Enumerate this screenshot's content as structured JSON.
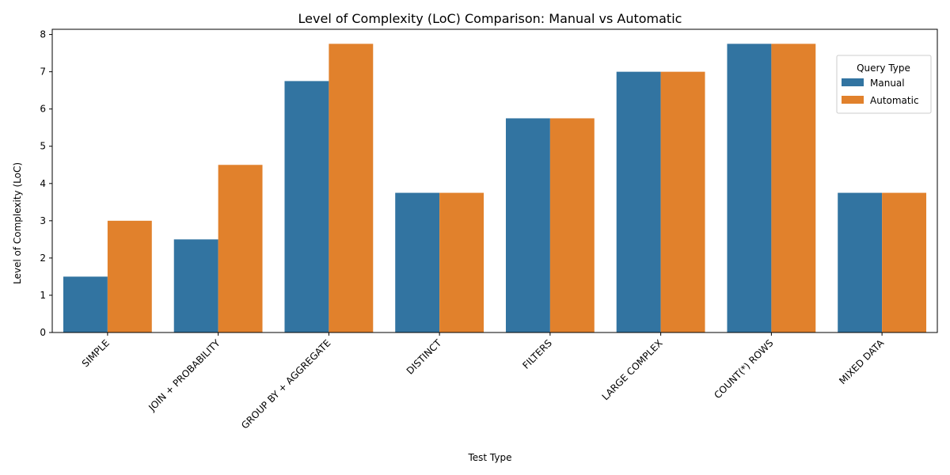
{
  "chart_data": {
    "type": "bar",
    "title": "Level of Complexity (LoC) Comparison: Manual vs Automatic",
    "xlabel": "Test Type",
    "ylabel": "Level of Complexity (LoC)",
    "categories": [
      "SIMPLE",
      "JOIN + PROBABILITY",
      "GROUP BY + AGGREGATE",
      "DISTINCT",
      "FILTERS",
      "LARGE COMPLEX",
      "COUNT(*) ROWS",
      "MIXED DATA"
    ],
    "series": [
      {
        "name": "Manual",
        "values": [
          1.5,
          2.5,
          6.75,
          3.75,
          5.75,
          7.0,
          7.75,
          3.75
        ],
        "color": "#3274a1"
      },
      {
        "name": "Automatic",
        "values": [
          3.0,
          4.5,
          7.75,
          3.75,
          5.75,
          7.0,
          7.75,
          3.75
        ],
        "color": "#e1812c"
      }
    ],
    "ylim": [
      0,
      8.14
    ],
    "yticks": [
      0,
      1,
      2,
      3,
      4,
      5,
      6,
      7,
      8
    ],
    "legend": {
      "title": "Query Type",
      "placement": "top-right"
    },
    "grid": false
  }
}
